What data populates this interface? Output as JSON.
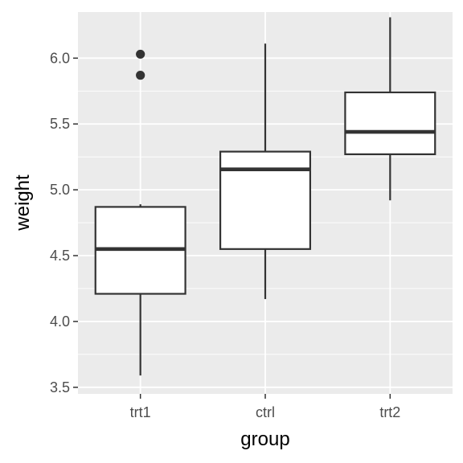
{
  "chart_data": {
    "type": "box",
    "xlabel": "group",
    "ylabel": "weight",
    "categories": [
      "trt1",
      "ctrl",
      "trt2"
    ],
    "ylim": [
      3.45,
      6.35
    ],
    "yticks": [
      3.5,
      4.0,
      4.5,
      5.0,
      5.5,
      6.0
    ],
    "ytick_labels": [
      "3.5",
      "4.0",
      "4.5",
      "5.0",
      "5.5",
      "6.0"
    ],
    "boxes": [
      {
        "category": "trt1",
        "whisker_low": 3.59,
        "q1": 4.21,
        "median": 4.55,
        "q3": 4.87,
        "whisker_high": 4.89,
        "outliers": [
          5.87,
          6.03
        ]
      },
      {
        "category": "ctrl",
        "whisker_low": 4.17,
        "q1": 4.55,
        "median": 5.155,
        "q3": 5.29,
        "whisker_high": 6.11,
        "outliers": []
      },
      {
        "category": "trt2",
        "whisker_low": 4.92,
        "q1": 5.27,
        "median": 5.44,
        "q3": 5.74,
        "whisker_high": 6.31,
        "outliers": []
      }
    ],
    "grid": true,
    "colors": {
      "panel": "#ebebeb",
      "grid": "#ffffff",
      "box_fill": "#ffffff",
      "box_stroke": "#333333",
      "tick_text": "#4d4d4d"
    }
  }
}
